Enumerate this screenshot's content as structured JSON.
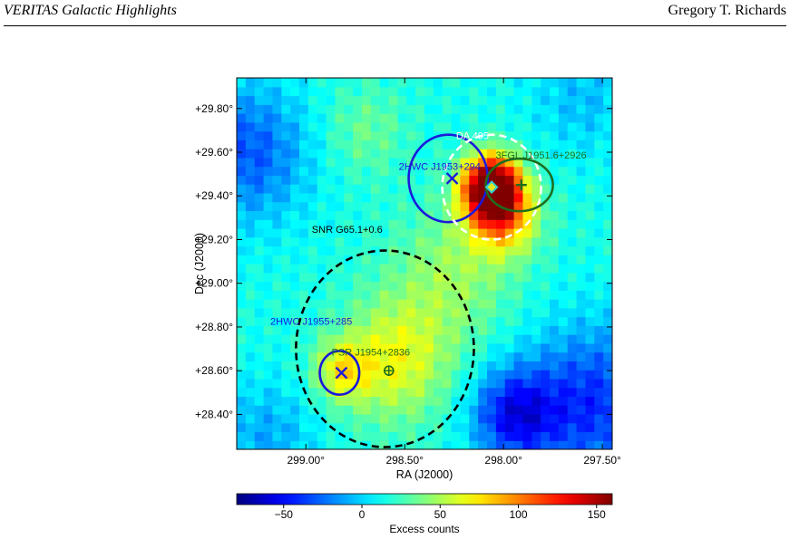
{
  "header": {
    "left": "VERITAS Galactic Highlights",
    "right": "Gregory T. Richards"
  },
  "chart_data": {
    "type": "heatmap",
    "xlabel": "RA (J2000)",
    "ylabel": "Dec (J2000)",
    "xlim": [
      299.35,
      297.45
    ],
    "ylim": [
      28.24,
      29.94
    ],
    "x_ticks": [
      {
        "value": 299.0,
        "label": "299.00°"
      },
      {
        "value": 298.5,
        "label": "298.50°"
      },
      {
        "value": 298.0,
        "label": "298.00°"
      },
      {
        "value": 297.5,
        "label": "297.50°"
      }
    ],
    "y_ticks": [
      {
        "value": 28.4,
        "label": "+28.40°"
      },
      {
        "value": 28.6,
        "label": "+28.60°"
      },
      {
        "value": 28.8,
        "label": "+28.80°"
      },
      {
        "value": 29.0,
        "label": "+29.00°"
      },
      {
        "value": 29.2,
        "label": "+29.20°"
      },
      {
        "value": 29.4,
        "label": "+29.40°"
      },
      {
        "value": 29.6,
        "label": "+29.60°"
      },
      {
        "value": 29.8,
        "label": "+29.80°"
      }
    ],
    "colorbar": {
      "label": "Excess counts",
      "range": [
        -80,
        160
      ],
      "ticks": [
        -50,
        0,
        50,
        100,
        150
      ],
      "tick_labels": [
        "−50",
        "0",
        "50",
        "100",
        "150"
      ],
      "colormap": "jet"
    },
    "excess_blobs": [
      {
        "ra": 298.06,
        "dec": 29.44,
        "amplitude": 180,
        "sigma_deg": 0.1
      },
      {
        "ra": 298.0,
        "dec": 29.3,
        "amplitude": 70,
        "sigma_deg": 0.12
      },
      {
        "ra": 298.55,
        "dec": 28.65,
        "amplitude": 50,
        "sigma_deg": 0.2
      },
      {
        "ra": 298.82,
        "dec": 28.6,
        "amplitude": 45,
        "sigma_deg": 0.1
      },
      {
        "ra": 298.25,
        "dec": 29.05,
        "amplitude": 30,
        "sigma_deg": 0.22
      },
      {
        "ra": 298.7,
        "dec": 29.7,
        "amplitude": 20,
        "sigma_deg": 0.15
      },
      {
        "ra": 299.3,
        "dec": 29.6,
        "amplitude": -45,
        "sigma_deg": 0.22
      },
      {
        "ra": 297.55,
        "dec": 28.45,
        "amplitude": -55,
        "sigma_deg": 0.25
      },
      {
        "ra": 297.95,
        "dec": 28.4,
        "amplitude": -60,
        "sigma_deg": 0.15
      },
      {
        "ra": 299.2,
        "dec": 28.3,
        "amplitude": -25,
        "sigma_deg": 0.18
      },
      {
        "ra": 297.6,
        "dec": 29.85,
        "amplitude": -20,
        "sigma_deg": 0.18
      }
    ],
    "regions": [
      {
        "name": "SNR G65.1+0.6",
        "shape": "circle",
        "ra": 298.6,
        "dec": 28.7,
        "radius_deg": 0.45,
        "color": "#000000",
        "style": "dashed"
      },
      {
        "name": "2HWC J1953+294",
        "shape": "circle",
        "ra": 298.28,
        "dec": 29.48,
        "radius_deg": 0.2,
        "color": "#1a1adb",
        "style": "solid"
      },
      {
        "name": "2HWC J1955+285",
        "shape": "circle",
        "ra": 298.83,
        "dec": 28.59,
        "radius_deg": 0.1,
        "color": "#1a1adb",
        "style": "solid"
      },
      {
        "name": "DA 495",
        "shape": "ellipse",
        "ra": 298.06,
        "dec": 29.44,
        "semi_major_deg": 0.25,
        "semi_minor_deg": 0.24,
        "color": "#ffffff",
        "style": "dashed"
      },
      {
        "name": "3FGL J1951.6+2926",
        "shape": "ellipse",
        "ra": 297.92,
        "dec": 29.45,
        "semi_major_deg": 0.17,
        "semi_minor_deg": 0.12,
        "color": "#1e6e1e",
        "style": "solid"
      }
    ],
    "markers": [
      {
        "name": "2HWC J1953+294",
        "ra": 298.26,
        "dec": 29.48,
        "symbol": "x",
        "color": "#1a1adb"
      },
      {
        "name": "2HWC J1955+285",
        "ra": 298.82,
        "dec": 28.59,
        "symbol": "x",
        "color": "#1a1adb"
      },
      {
        "name": "3FGL J1951.6+2926",
        "ra": 297.91,
        "dec": 29.45,
        "symbol": "plus",
        "color": "#1e6e1e"
      },
      {
        "name": "PSR J1954+2836",
        "ra": 298.58,
        "dec": 28.6,
        "symbol": "circled-plus",
        "color": "#1e6e1e"
      },
      {
        "name": "DA 495",
        "ra": 298.06,
        "dec": 29.44,
        "symbol": "diamond",
        "color": "#e8e820"
      }
    ],
    "labels": [
      {
        "text": "DA 495",
        "ra": 298.24,
        "dec": 29.66,
        "color": "#ffffff"
      },
      {
        "text": "3FGL J1951.6+2926",
        "ra": 298.04,
        "dec": 29.57,
        "color": "#1e6e1e"
      },
      {
        "text": "2HWC J1953+294",
        "ra": 298.53,
        "dec": 29.52,
        "color": "#1a1adb"
      },
      {
        "text": "SNR G65.1+0.6",
        "ra": 298.97,
        "dec": 29.23,
        "color": "#000000"
      },
      {
        "text": "2HWC J1955+285",
        "ra": 299.18,
        "dec": 28.81,
        "color": "#1a1adb"
      },
      {
        "text": "PSR J1954+2836",
        "ra": 298.87,
        "dec": 28.67,
        "color": "#1e6e1e"
      }
    ]
  }
}
